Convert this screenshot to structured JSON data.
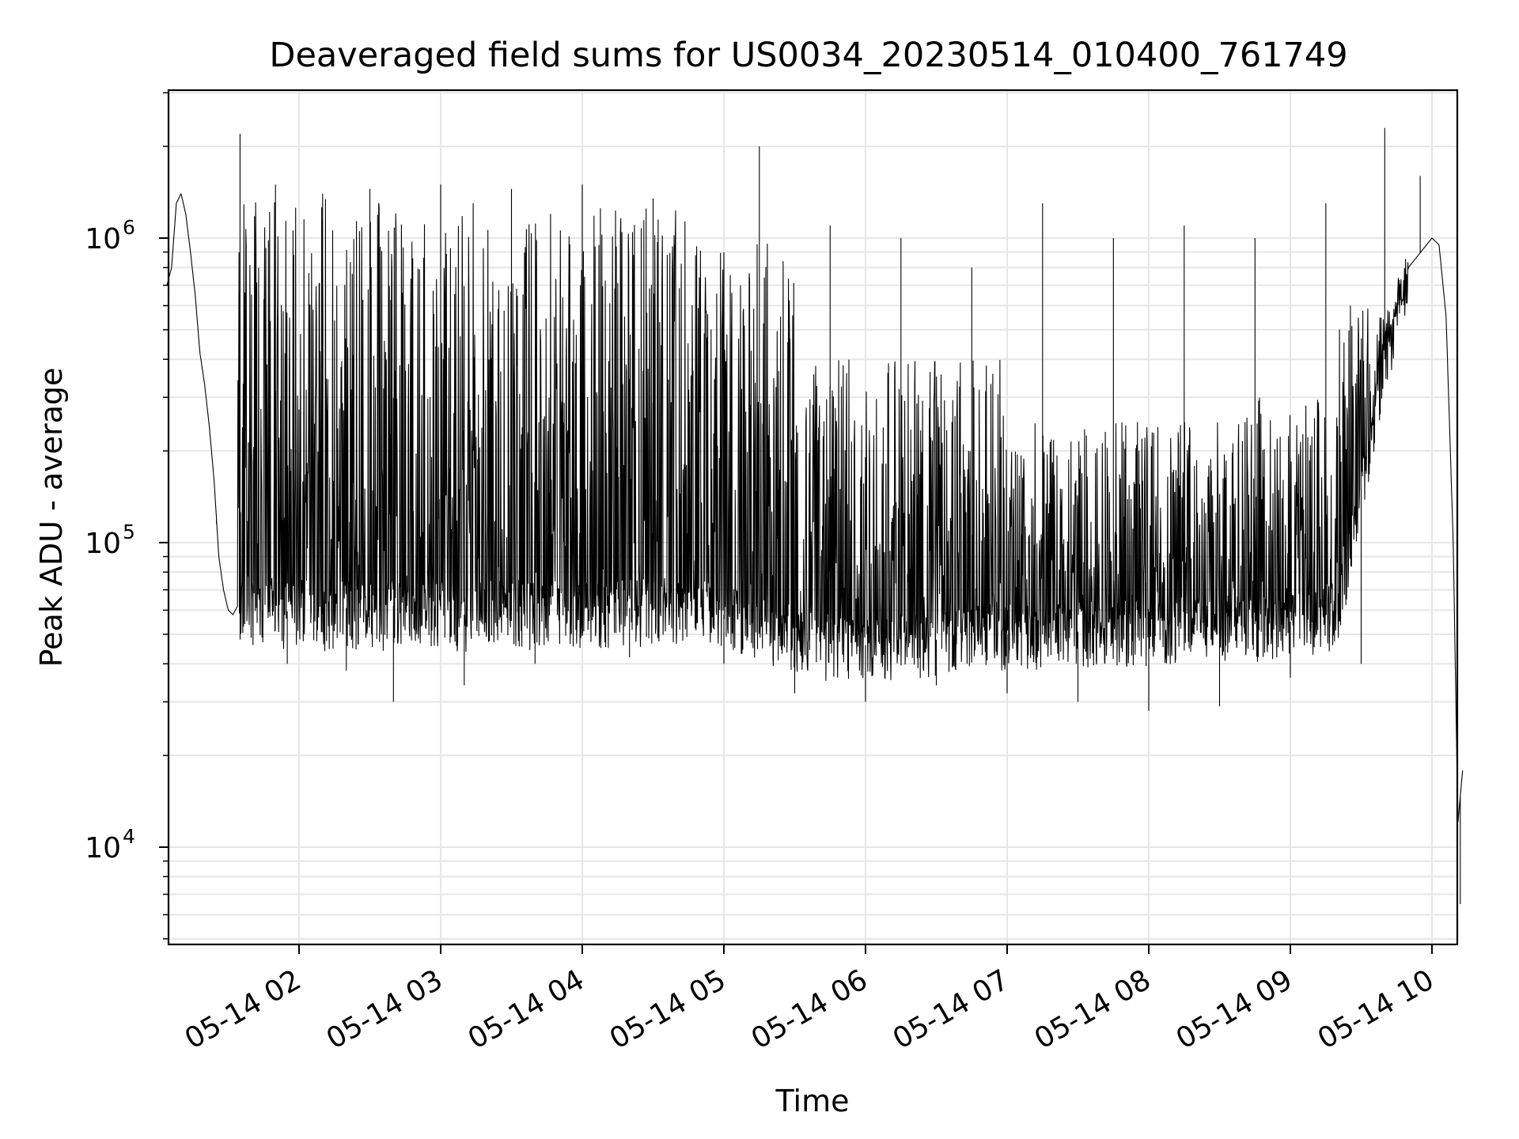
{
  "chart_data": {
    "type": "line",
    "title": "Deaveraged field sums for US0034_20230514_010400_761749",
    "xlabel": "Time",
    "ylabel": "Peak ADU - average",
    "y_scale": "log",
    "ylim": [
      5000,
      3000000
    ],
    "x_range": [
      "05-14 01:04",
      "05-14 10:13"
    ],
    "x_ticks": [
      "05-14 02",
      "05-14 03",
      "05-14 04",
      "05-14 05",
      "05-14 06",
      "05-14 07",
      "05-14 08",
      "05-14 09",
      "05-14 10"
    ],
    "y_ticks": [
      {
        "base": "10",
        "exp": "4",
        "value": 10000
      },
      {
        "base": "10",
        "exp": "5",
        "value": 100000
      },
      {
        "base": "10",
        "exp": "6",
        "value": 1000000
      }
    ],
    "grid": true,
    "line_color": "#000000",
    "series": [
      {
        "x": [
          "05-14 01:04",
          "05-14 01:06",
          "05-14 01:08",
          "05-14 01:10",
          "05-14 01:12",
          "05-14 01:14",
          "05-14 01:16",
          "05-14 01:18",
          "05-14 01:20",
          "05-14 01:22",
          "05-14 01:24",
          "05-14 01:26",
          "05-14 01:28",
          "05-14 01:30",
          "05-14 01:32",
          "05-14 01:34",
          "05-14 01:36",
          "05-14 01:38",
          "05-14 01:40",
          "05-14 01:42",
          "05-14 01:44",
          "05-14 01:46",
          "05-14 01:48",
          "05-14 01:50",
          "05-14 01:52",
          "05-14 01:54",
          "05-14 01:56",
          "05-14 01:58",
          "05-14 02:00",
          "05-14 02:05",
          "05-14 02:10",
          "05-14 02:15",
          "05-14 02:20",
          "05-14 02:25",
          "05-14 02:30",
          "05-14 02:35",
          "05-14 02:40",
          "05-14 02:45",
          "05-14 02:50",
          "05-14 02:55",
          "05-14 03:00",
          "05-14 03:10",
          "05-14 03:20",
          "05-14 03:30",
          "05-14 03:40",
          "05-14 03:50",
          "05-14 04:00",
          "05-14 04:10",
          "05-14 04:20",
          "05-14 04:30",
          "05-14 04:40",
          "05-14 04:50",
          "05-14 05:00",
          "05-14 05:10",
          "05-14 05:20",
          "05-14 05:30",
          "05-14 05:40",
          "05-14 05:50",
          "05-14 06:00",
          "05-14 06:15",
          "05-14 06:30",
          "05-14 06:45",
          "05-14 07:00",
          "05-14 07:15",
          "05-14 07:30",
          "05-14 07:45",
          "05-14 08:00",
          "05-14 08:15",
          "05-14 08:30",
          "05-14 08:45",
          "05-14 09:00",
          "05-14 09:10",
          "05-14 09:20",
          "05-14 09:30",
          "05-14 09:40",
          "05-14 09:50",
          "05-14 10:00",
          "05-14 10:03",
          "05-14 10:06",
          "05-14 10:09",
          "05-14 10:11",
          "05-14 10:13"
        ],
        "y": [
          700000,
          800000,
          1300000,
          1400000,
          1200000,
          900000,
          650000,
          420000,
          330000,
          240000,
          160000,
          90000,
          70000,
          60000,
          58000,
          62000,
          60000,
          58000,
          60000,
          62000,
          60000,
          58000,
          60000,
          62000,
          60000,
          58000,
          61000,
          59000,
          60000,
          62000,
          58000,
          60000,
          61000,
          59000,
          60000,
          58000,
          62000,
          60000,
          59000,
          61000,
          60000,
          58000,
          62000,
          60000,
          59000,
          61000,
          60000,
          58000,
          61000,
          60000,
          59000,
          60000,
          58000,
          55000,
          52000,
          48000,
          47000,
          46000,
          46000,
          47000,
          48000,
          50000,
          50000,
          50000,
          51000,
          52000,
          52000,
          52000,
          53000,
          54000,
          55000,
          56000,
          60000,
          150000,
          400000,
          800000,
          1000000,
          950000,
          550000,
          100000,
          12000,
          18000
        ]
      }
    ],
    "spikes_max": [
      [
        "05-14 01:35",
        2200000
      ],
      [
        "05-14 01:50",
        1500000
      ],
      [
        "05-14 02:10",
        1400000
      ],
      [
        "05-14 02:30",
        1450000
      ],
      [
        "05-14 03:00",
        1500000
      ],
      [
        "05-14 03:30",
        1450000
      ],
      [
        "05-14 04:00",
        1500000
      ],
      [
        "05-14 04:30",
        1350000
      ],
      [
        "05-14 05:15",
        2000000
      ],
      [
        "05-14 05:45",
        1100000
      ],
      [
        "05-14 06:15",
        1000000
      ],
      [
        "05-14 06:45",
        800000
      ],
      [
        "05-14 07:15",
        1300000
      ],
      [
        "05-14 07:45",
        1000000
      ],
      [
        "05-14 08:15",
        1100000
      ],
      [
        "05-14 08:45",
        1000000
      ],
      [
        "05-14 09:15",
        1300000
      ],
      [
        "05-14 09:40",
        2300000
      ],
      [
        "05-14 09:55",
        1600000
      ]
    ],
    "spikes_min": [
      [
        "05-14 01:25",
        115000
      ],
      [
        "05-14 01:55",
        40000
      ],
      [
        "05-14 02:20",
        38000
      ],
      [
        "05-14 02:40",
        30000
      ],
      [
        "05-14 03:10",
        34000
      ],
      [
        "05-14 03:40",
        40000
      ],
      [
        "05-14 04:20",
        42000
      ],
      [
        "05-14 05:00",
        40000
      ],
      [
        "05-14 05:30",
        32000
      ],
      [
        "05-14 06:00",
        30000
      ],
      [
        "05-14 06:30",
        34000
      ],
      [
        "05-14 07:00",
        32000
      ],
      [
        "05-14 07:30",
        30000
      ],
      [
        "05-14 08:00",
        28000
      ],
      [
        "05-14 08:30",
        29000
      ],
      [
        "05-14 09:00",
        36000
      ],
      [
        "05-14 09:30",
        40000
      ],
      [
        "05-14 10:12",
        6500
      ]
    ]
  }
}
